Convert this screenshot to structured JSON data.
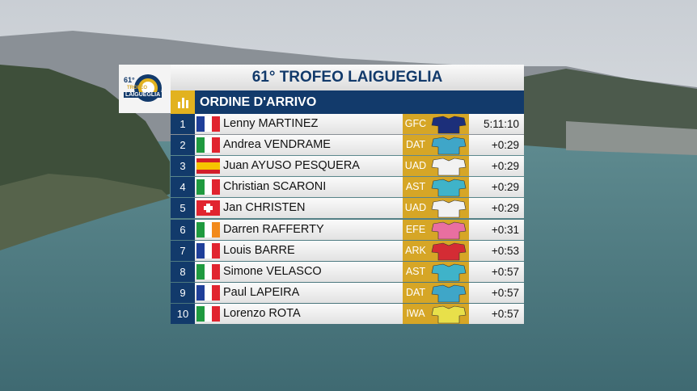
{
  "logo": {
    "edition": "61°",
    "line1": "TROFEO",
    "line2": "LAIGUEGLIA"
  },
  "header": {
    "title": "61° TROFEO LAIGUEGLIA",
    "subtitle": "ORDINE D'ARRIVO"
  },
  "table": {
    "rows": [
      [
        1,
        "Lenny MARTINEZ",
        "GFC",
        "5:11:10"
      ],
      [
        2,
        "Andrea VENDRAME",
        "DAT",
        "+0:29"
      ],
      [
        3,
        "Juan AYUSO PESQUERA",
        "UAD",
        "+0:29"
      ],
      [
        4,
        "Christian SCARONI",
        "AST",
        "+0:29"
      ],
      [
        5,
        "Jan CHRISTEN",
        "UAD",
        "+0:29"
      ],
      [
        6,
        "Darren RAFFERTY",
        "EFE",
        "+0:31"
      ],
      [
        7,
        "Louis BARRE",
        "ARK",
        "+0:53"
      ],
      [
        8,
        "Simone VELASCO",
        "AST",
        "+0:57"
      ],
      [
        9,
        "Paul LAPEIRA",
        "DAT",
        "+0:57"
      ],
      [
        10,
        "Lorenzo ROTA",
        "IWA",
        "+0:57"
      ]
    ]
  }
}
